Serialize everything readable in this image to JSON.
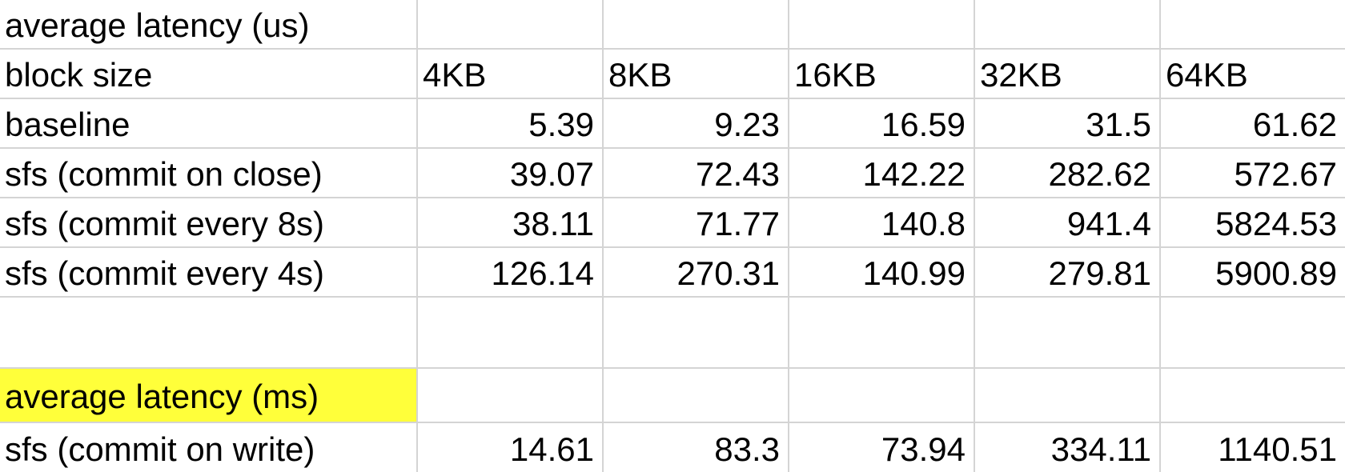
{
  "sheet": {
    "highlight_color": "#ffff3a",
    "grid_color": "#d4d4d4",
    "rows": [
      {
        "label": "average latency (us)",
        "values": [
          "",
          "",
          "",
          "",
          ""
        ],
        "type": "title",
        "highlight": false
      },
      {
        "label": "block size",
        "values": [
          "4KB",
          "8KB",
          "16KB",
          "32KB",
          "64KB"
        ],
        "type": "header",
        "highlight": false
      },
      {
        "label": "baseline",
        "values": [
          "5.39",
          "9.23",
          "16.59",
          "31.5",
          "61.62"
        ],
        "type": "data",
        "highlight": false
      },
      {
        "label": "sfs (commit on close)",
        "values": [
          "39.07",
          "72.43",
          "142.22",
          "282.62",
          "572.67"
        ],
        "type": "data",
        "highlight": false
      },
      {
        "label": "sfs (commit every 8s)",
        "values": [
          "38.11",
          "71.77",
          "140.8",
          "941.4",
          "5824.53"
        ],
        "type": "data",
        "highlight": false
      },
      {
        "label": "sfs (commit every 4s)",
        "values": [
          "126.14",
          "270.31",
          "140.99",
          "279.81",
          "5900.89"
        ],
        "type": "data",
        "highlight": false
      },
      {
        "label": "",
        "values": [
          "",
          "",
          "",
          "",
          ""
        ],
        "type": "empty",
        "highlight": false
      },
      {
        "label": "average latency (ms)",
        "values": [
          "",
          "",
          "",
          "",
          ""
        ],
        "type": "title",
        "highlight": true
      },
      {
        "label": "sfs (commit on write)",
        "values": [
          "14.61",
          "83.3",
          "73.94",
          "334.11",
          "1140.51"
        ],
        "type": "data",
        "highlight": false
      }
    ]
  }
}
